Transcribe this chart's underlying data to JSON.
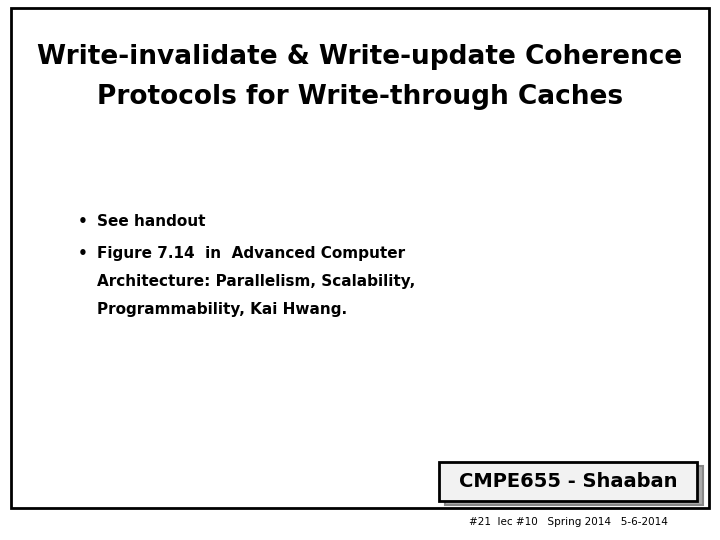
{
  "title_line1": "Write-invalidate & Write-update Coherence",
  "title_line2": "Protocols for Write-through Caches",
  "bullet1": "See handout",
  "bullet2_line1": "Figure 7.14  in  Advanced Computer",
  "bullet2_line2": "Architecture: Parallelism, Scalability,",
  "bullet2_line3": "Programmability, Kai Hwang.",
  "footer_main": "CMPE655 - Shaaban",
  "footer_sub": "#21  lec #10   Spring 2014   5-6-2014",
  "bg_color": "#ffffff",
  "border_color": "#000000",
  "text_color": "#000000",
  "title_fontsize": 19,
  "bullet_fontsize": 11,
  "footer_main_fontsize": 14,
  "footer_sub_fontsize": 7.5
}
